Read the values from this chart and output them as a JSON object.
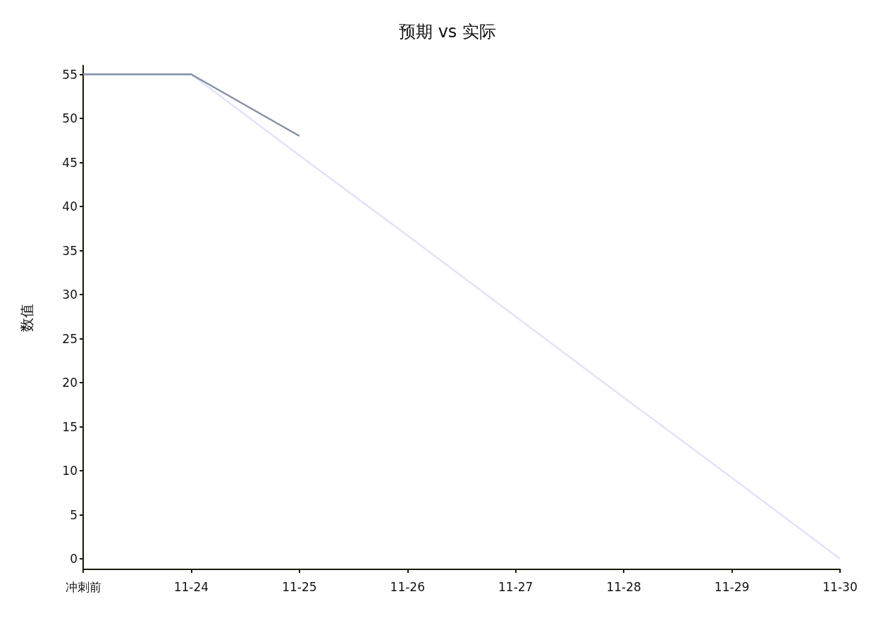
{
  "chart_data": {
    "type": "line",
    "title": "预期 vs 实际",
    "ylabel": "数值",
    "categories": [
      "冲刺前",
      "11-24",
      "11-25",
      "11-26",
      "11-27",
      "11-28",
      "11-29",
      "11-30"
    ],
    "series": [
      {
        "color": "#e2e2fa",
        "values": [
          55,
          55,
          45.8,
          36.7,
          27.5,
          18.3,
          9.2,
          0
        ]
      },
      {
        "color": "#8390a5",
        "values": [
          55,
          55,
          48,
          null,
          null,
          null,
          null,
          null
        ]
      }
    ],
    "ylim": [
      -1.2,
      56
    ],
    "yticks": [
      0,
      5,
      10,
      15,
      20,
      25,
      30,
      35,
      40,
      45,
      50,
      55
    ],
    "grid": false,
    "marker": "none",
    "line_style": "solid"
  }
}
